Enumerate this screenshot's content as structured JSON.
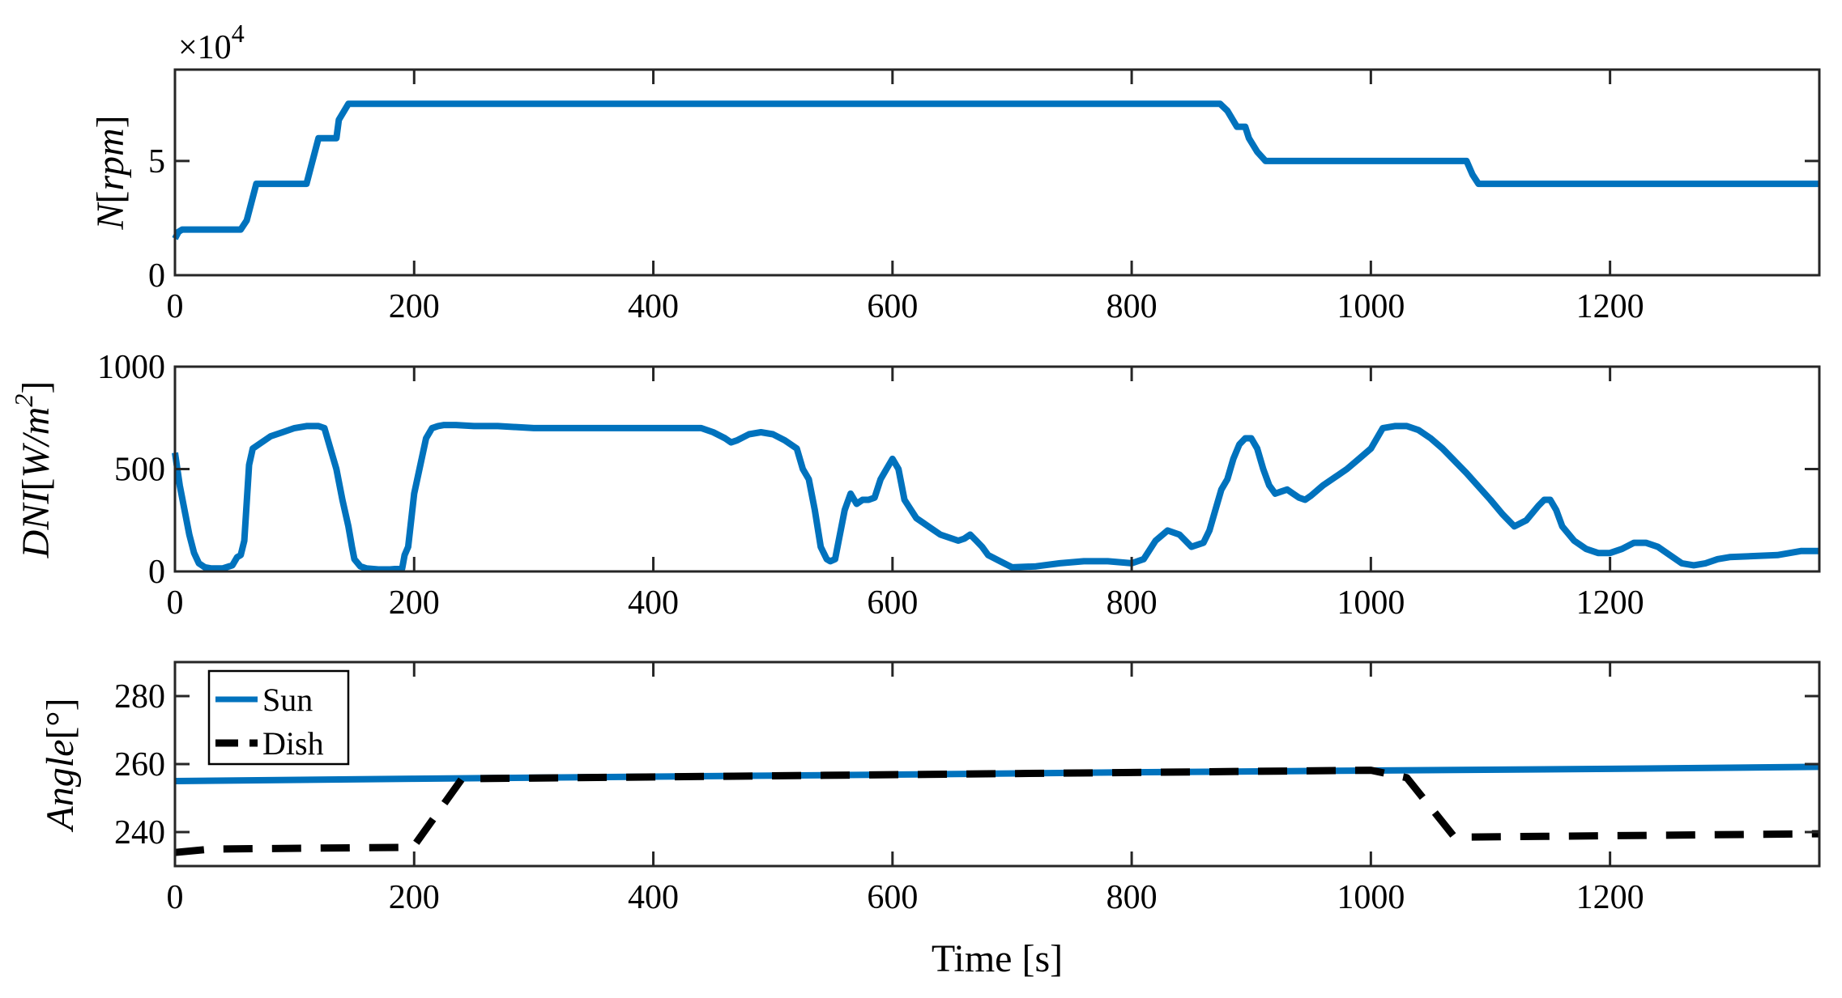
{
  "chart_data": [
    {
      "type": "line",
      "ylabel_var": "N",
      "ylabel_unit": "rpm",
      "multiplier_base": "×10",
      "multiplier_exp": "4",
      "xlim": [
        0,
        1375
      ],
      "ylim": [
        0,
        9
      ],
      "xticks": [
        0,
        200,
        400,
        600,
        800,
        1000,
        1200
      ],
      "yticks": [
        0,
        5
      ],
      "grid": false,
      "series": [
        {
          "color": "#0072BD",
          "dash": "solid",
          "x": [
            0,
            3,
            6,
            55,
            60,
            68,
            110,
            113,
            120,
            135,
            137,
            145,
            150,
            874,
            880,
            888,
            895,
            898,
            905,
            912,
            1080,
            1085,
            1090,
            1375
          ],
          "y": [
            1.6,
            1.9,
            2.0,
            2.0,
            2.4,
            4.0,
            4.0,
            4.6,
            6.0,
            6.0,
            6.8,
            7.5,
            7.5,
            7.5,
            7.2,
            6.5,
            6.5,
            6.0,
            5.4,
            5.0,
            5.0,
            4.4,
            4.0,
            4.0
          ]
        }
      ]
    },
    {
      "type": "line",
      "ylabel_var": "DNI",
      "ylabel_unit": "W/m",
      "ylabel_unit_exp": "2",
      "xlim": [
        0,
        1375
      ],
      "ylim": [
        0,
        1000
      ],
      "xticks": [
        0,
        200,
        400,
        600,
        800,
        1000,
        1200
      ],
      "yticks": [
        0,
        500,
        1000
      ],
      "grid": false,
      "series": [
        {
          "color": "#0072BD",
          "dash": "solid",
          "x": [
            0,
            4,
            8,
            12,
            16,
            20,
            25,
            30,
            40,
            48,
            52,
            55,
            58,
            62,
            65,
            70,
            80,
            90,
            100,
            110,
            120,
            125,
            130,
            135,
            140,
            145,
            148,
            150,
            155,
            160,
            170,
            180,
            190,
            192,
            195,
            200,
            210,
            215,
            220,
            225,
            235,
            250,
            270,
            300,
            350,
            400,
            440,
            450,
            460,
            465,
            470,
            480,
            490,
            500,
            510,
            520,
            525,
            530,
            535,
            540,
            545,
            548,
            552,
            555,
            560,
            565,
            570,
            575,
            580,
            585,
            590,
            595,
            600,
            605,
            610,
            620,
            640,
            655,
            660,
            665,
            670,
            675,
            680,
            690,
            700,
            720,
            740,
            760,
            780,
            800,
            810,
            820,
            830,
            840,
            850,
            860,
            865,
            870,
            875,
            880,
            885,
            890,
            895,
            900,
            905,
            910,
            915,
            920,
            925,
            930,
            935,
            940,
            945,
            950,
            960,
            970,
            980,
            990,
            1000,
            1010,
            1020,
            1030,
            1040,
            1050,
            1060,
            1080,
            1100,
            1110,
            1120,
            1130,
            1140,
            1145,
            1150,
            1155,
            1160,
            1170,
            1180,
            1190,
            1200,
            1210,
            1220,
            1230,
            1240,
            1250,
            1260,
            1270,
            1280,
            1290,
            1300,
            1320,
            1340,
            1360,
            1375
          ],
          "y": [
            580,
            420,
            300,
            180,
            90,
            40,
            20,
            15,
            15,
            30,
            70,
            80,
            150,
            520,
            600,
            620,
            660,
            680,
            700,
            710,
            710,
            700,
            600,
            500,
            350,
            220,
            120,
            60,
            25,
            15,
            10,
            10,
            15,
            80,
            120,
            380,
            650,
            700,
            710,
            715,
            715,
            710,
            710,
            700,
            700,
            700,
            700,
            680,
            650,
            630,
            640,
            670,
            680,
            670,
            640,
            600,
            500,
            450,
            300,
            120,
            60,
            50,
            60,
            150,
            300,
            380,
            330,
            350,
            350,
            360,
            450,
            500,
            550,
            500,
            350,
            260,
            180,
            150,
            160,
            180,
            150,
            120,
            80,
            50,
            20,
            25,
            40,
            50,
            50,
            40,
            60,
            150,
            200,
            180,
            120,
            140,
            200,
            300,
            400,
            450,
            550,
            620,
            650,
            650,
            600,
            500,
            420,
            380,
            390,
            400,
            380,
            360,
            350,
            370,
            420,
            460,
            500,
            550,
            600,
            700,
            710,
            710,
            690,
            650,
            600,
            480,
            350,
            280,
            220,
            250,
            320,
            350,
            350,
            300,
            220,
            150,
            110,
            90,
            90,
            110,
            140,
            140,
            120,
            80,
            40,
            30,
            40,
            60,
            70,
            75,
            80,
            100,
            100
          ]
        }
      ]
    },
    {
      "type": "line",
      "ylabel_var": "Angle",
      "ylabel_unit": "°",
      "xlim": [
        0,
        1375
      ],
      "ylim": [
        230,
        290
      ],
      "xticks": [
        0,
        200,
        400,
        600,
        800,
        1000,
        1200
      ],
      "yticks": [
        240,
        260,
        280
      ],
      "xlabel": "Time [s]",
      "grid": false,
      "legend_position": "top-left",
      "series": [
        {
          "name": "Sun",
          "color": "#0072BD",
          "dash": "solid",
          "x": [
            0,
            200,
            400,
            600,
            800,
            1000,
            1200,
            1375
          ],
          "y": [
            255,
            255.7,
            256.3,
            256.9,
            257.6,
            258.1,
            258.6,
            259.2
          ]
        },
        {
          "name": "Dish",
          "color": "#000000",
          "dash": "dashed",
          "x": [
            0,
            30,
            190,
            200,
            240,
            1000,
            1030,
            1070,
            1375
          ],
          "y": [
            234,
            235,
            235.5,
            236,
            255.7,
            258.2,
            256,
            238.5,
            239.5
          ]
        }
      ]
    }
  ]
}
